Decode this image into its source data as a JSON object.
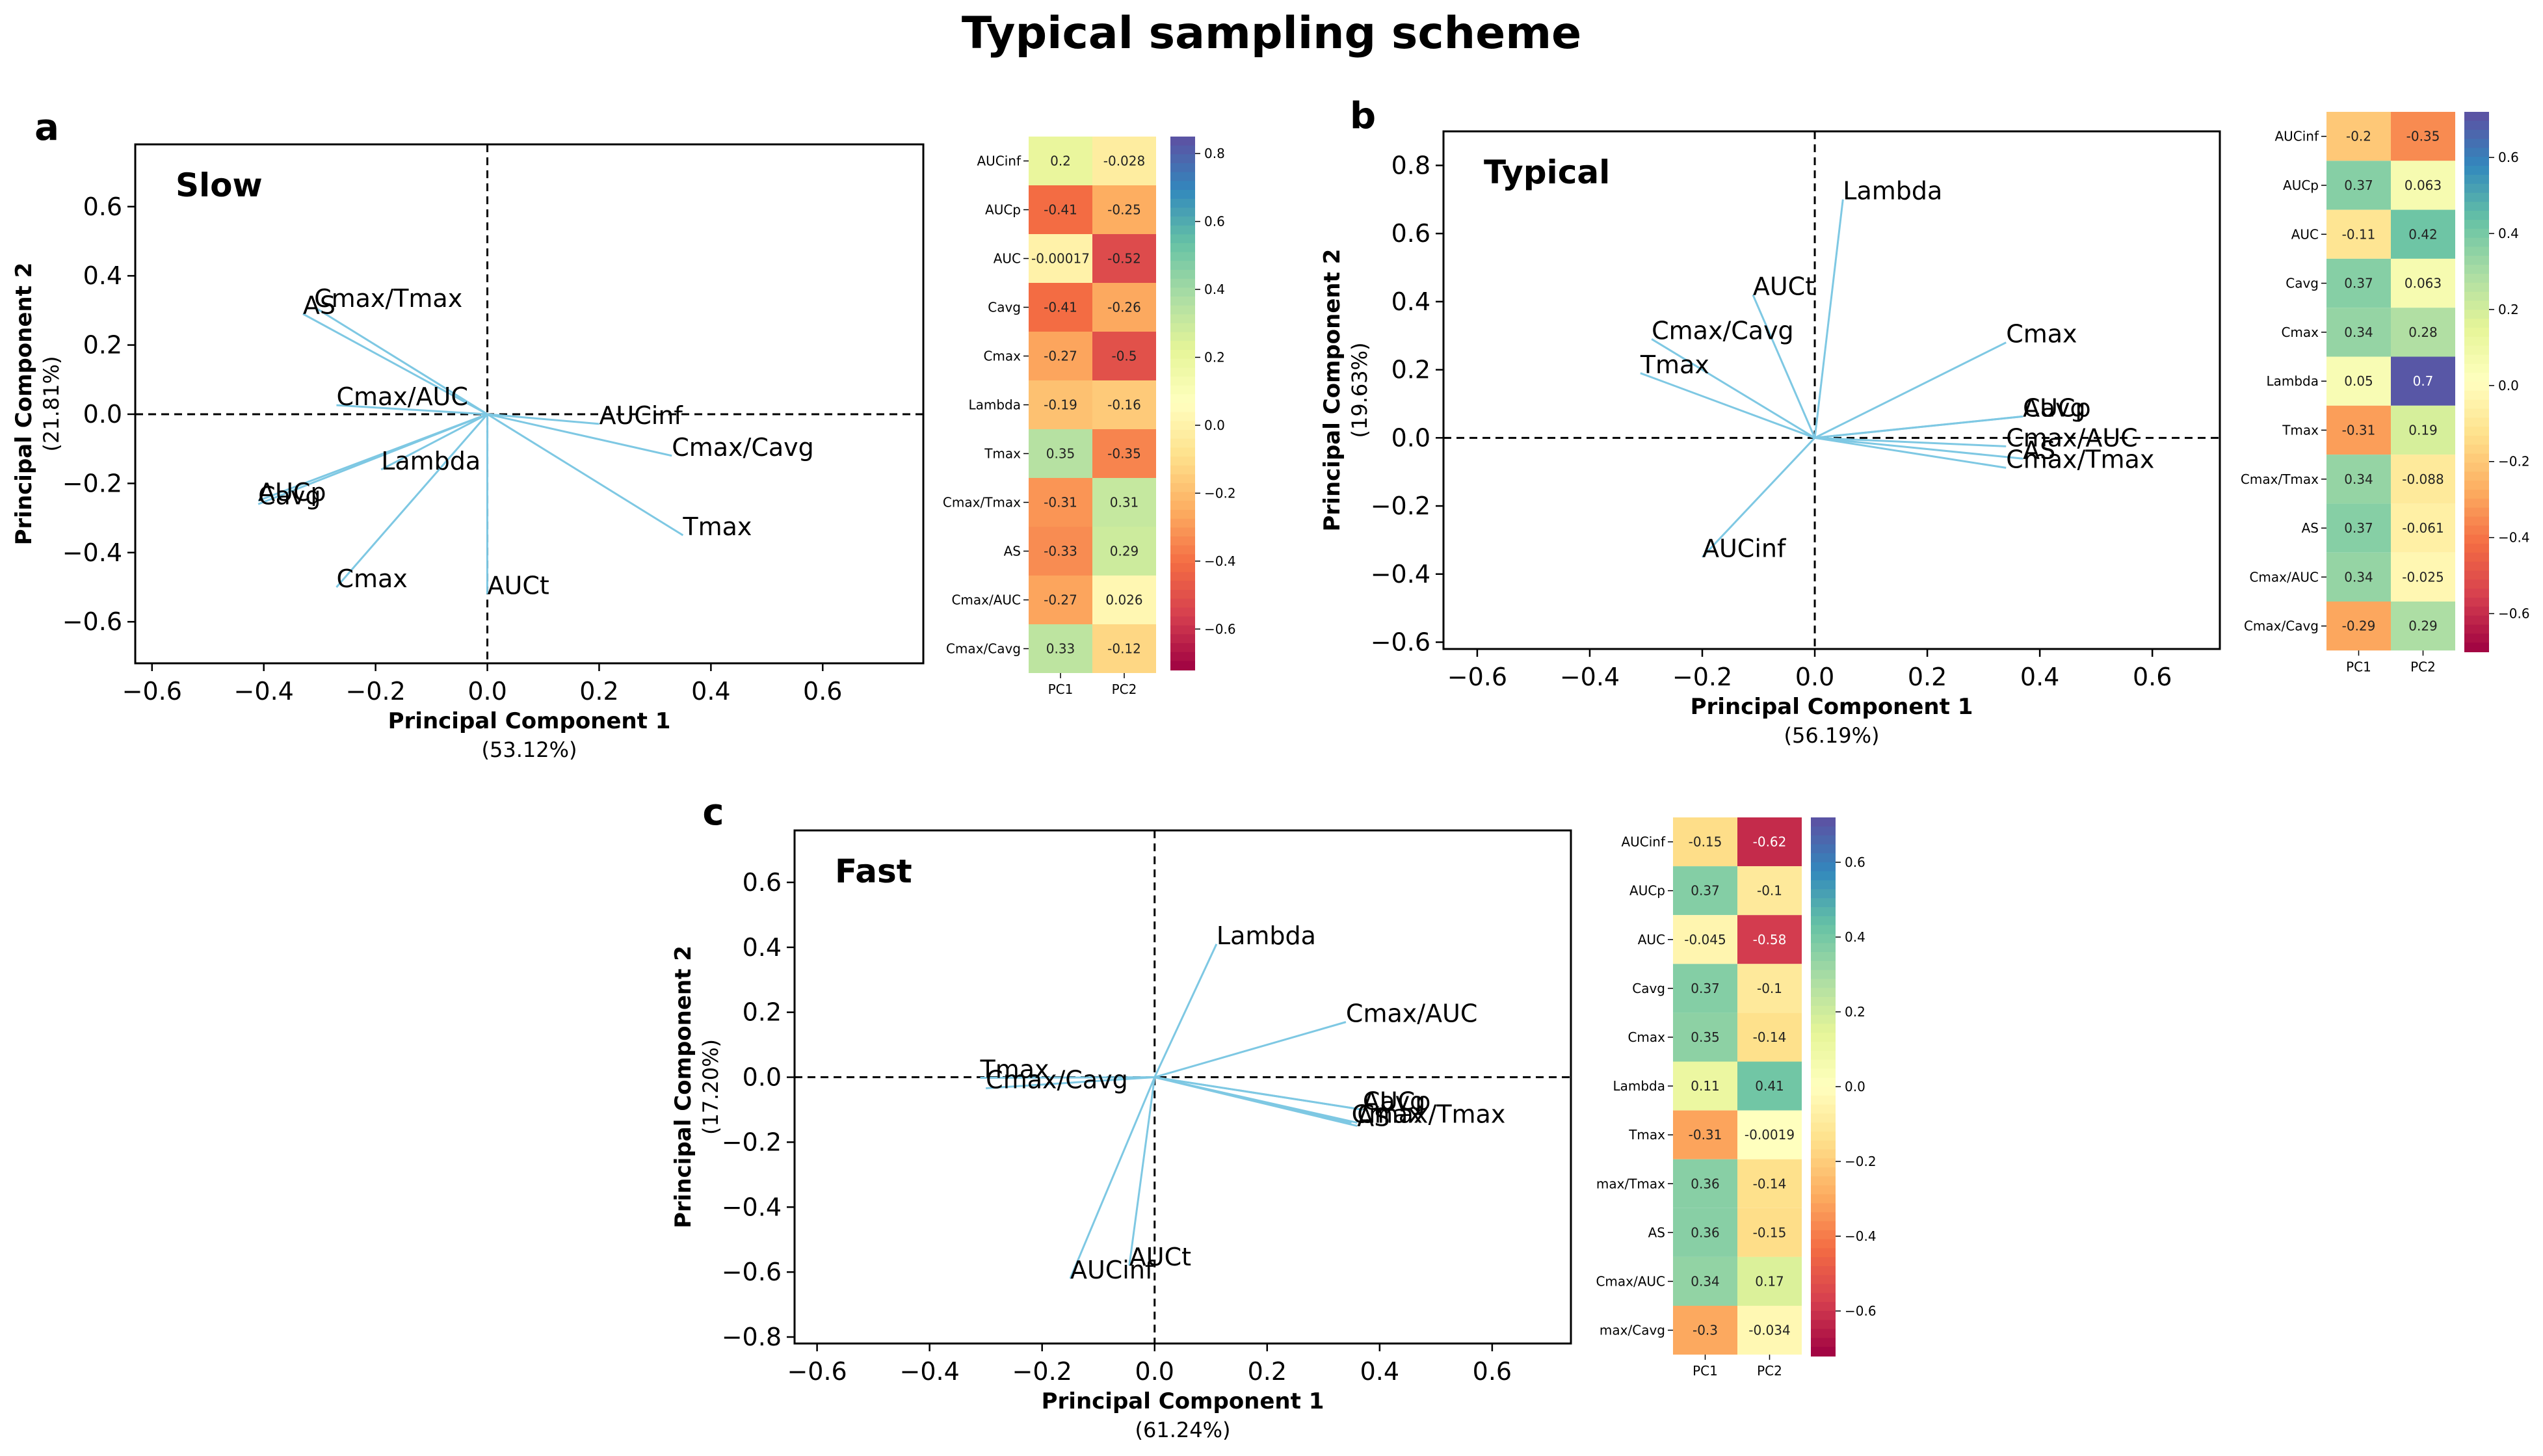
{
  "figure_title": "Typical sampling scheme",
  "colormap": [
    "#9e0142",
    "#d53e4f",
    "#f46d43",
    "#fdae61",
    "#fee08b",
    "#ffffbf",
    "#e6f598",
    "#abdda4",
    "#66c2a5",
    "#3288bd",
    "#5e4fa2"
  ],
  "vector_color": "#7ec8e3",
  "chart_data": [
    {
      "type": "scatter",
      "letter": "a",
      "name": "Slow",
      "xlabel": "Principal Component 1",
      "xlabel_sub": "(53.12%)",
      "ylabel": "Principal Component 2",
      "ylabel_sub": "(21.81%)",
      "xlim": [
        -0.63,
        0.78
      ],
      "ylim": [
        -0.72,
        0.78
      ],
      "xticks": [
        -0.6,
        -0.4,
        -0.2,
        0.0,
        0.2,
        0.4,
        0.6
      ],
      "yticks": [
        -0.6,
        -0.4,
        -0.2,
        0.0,
        0.2,
        0.4,
        0.6
      ],
      "xtick_labels": [
        "−0.6",
        "−0.4",
        "−0.2",
        "0.0",
        "0.2",
        "0.4",
        "0.6"
      ],
      "ytick_labels": [
        "−0.6",
        "−0.4",
        "−0.2",
        "0.0",
        "0.2",
        "0.4",
        "0.6"
      ],
      "vectors": [
        {
          "name": "AUCinf",
          "x": 0.2,
          "y": -0.028
        },
        {
          "name": "AUCp",
          "x": -0.41,
          "y": -0.25
        },
        {
          "name": "AUC",
          "x": -0.00017,
          "y": -0.52
        },
        {
          "name": "Cavg",
          "x": -0.41,
          "y": -0.26
        },
        {
          "name": "Cmax",
          "x": -0.27,
          "y": -0.5
        },
        {
          "name": "Lambda",
          "x": -0.19,
          "y": -0.16
        },
        {
          "name": "Tmax",
          "x": 0.35,
          "y": -0.35
        },
        {
          "name": "Cmax/Tmax",
          "x": -0.31,
          "y": 0.31
        },
        {
          "name": "AS",
          "x": -0.33,
          "y": 0.29
        },
        {
          "name": "Cmax/AUC",
          "x": -0.27,
          "y": 0.026
        },
        {
          "name": "Cmax/Cavg",
          "x": 0.33,
          "y": -0.12
        }
      ],
      "vector_labels": [
        {
          "text": "AUCinf",
          "x": 0.2,
          "y": -0.028
        },
        {
          "text": "AUCp",
          "x": -0.41,
          "y": -0.25
        },
        {
          "text": "Cavg",
          "x": -0.41,
          "y": -0.26
        },
        {
          "text": "Cmax",
          "x": -0.27,
          "y": -0.5
        },
        {
          "text": "Lambda",
          "x": -0.19,
          "y": -0.16
        },
        {
          "text": "Tmax",
          "x": 0.35,
          "y": -0.35
        },
        {
          "text": "Cmax/Tmax",
          "x": -0.31,
          "y": 0.31
        },
        {
          "text": "AS",
          "x": -0.33,
          "y": 0.29
        },
        {
          "text": "Cmax/AUC",
          "x": -0.27,
          "y": 0.026
        },
        {
          "text": "Cmax/Cavg",
          "x": 0.33,
          "y": -0.12
        },
        {
          "text": "AUCt",
          "x": 0.0,
          "y": -0.52
        }
      ],
      "heatmap": {
        "rows": [
          "AUCinf",
          "AUCp",
          "AUC",
          "Cavg",
          "Cmax",
          "Lambda",
          "Tmax",
          "Cmax/Tmax",
          "AS",
          "Cmax/AUC",
          "Cmax/Cavg"
        ],
        "columns": [
          "PC1",
          "PC2"
        ],
        "values": [
          [
            0.2,
            -0.028
          ],
          [
            -0.41,
            -0.25
          ],
          [
            -0.00017,
            -0.52
          ],
          [
            -0.41,
            -0.26
          ],
          [
            -0.27,
            -0.5
          ],
          [
            -0.19,
            -0.16
          ],
          [
            0.35,
            -0.35
          ],
          [
            -0.31,
            0.31
          ],
          [
            -0.33,
            0.29
          ],
          [
            -0.27,
            0.026
          ],
          [
            0.33,
            -0.12
          ]
        ],
        "labels": [
          [
            "0.2",
            "-0.028"
          ],
          [
            "-0.41",
            "-0.25"
          ],
          [
            "-0.00017",
            "-0.52"
          ],
          [
            "-0.41",
            "-0.26"
          ],
          [
            "-0.27",
            "-0.5"
          ],
          [
            "-0.19",
            "-0.16"
          ],
          [
            "0.35",
            "-0.35"
          ],
          [
            "-0.31",
            "0.31"
          ],
          [
            "-0.33",
            "0.29"
          ],
          [
            "-0.27",
            "0.026"
          ],
          [
            "0.33",
            "-0.12"
          ]
        ],
        "vmin": -0.72,
        "vmax": 0.85,
        "cbar_ticks": [
          0.8,
          0.6,
          0.4,
          0.2,
          0.0,
          -0.2,
          -0.4,
          -0.6
        ],
        "cbar_tick_labels": [
          "0.8",
          "0.6",
          "0.4",
          "0.2",
          "0.0",
          "−0.2",
          "−0.4",
          "−0.6"
        ]
      }
    },
    {
      "type": "scatter",
      "letter": "b",
      "name": "Typical",
      "xlabel": "Principal Component 1",
      "xlabel_sub": "(56.19%)",
      "ylabel": "Principal Component 2",
      "ylabel_sub": "(19.63%)",
      "xlim": [
        -0.66,
        0.72
      ],
      "ylim": [
        -0.62,
        0.9
      ],
      "xticks": [
        -0.6,
        -0.4,
        -0.2,
        0.0,
        0.2,
        0.4,
        0.6
      ],
      "yticks": [
        -0.6,
        -0.4,
        -0.2,
        0.0,
        0.2,
        0.4,
        0.6,
        0.8
      ],
      "xtick_labels": [
        "−0.6",
        "−0.4",
        "−0.2",
        "0.0",
        "0.2",
        "0.4",
        "0.6"
      ],
      "ytick_labels": [
        "−0.6",
        "−0.4",
        "−0.2",
        "0.0",
        "0.2",
        "0.4",
        "0.6",
        "0.8"
      ],
      "vectors": [
        {
          "name": "AUCinf",
          "x": -0.2,
          "y": -0.35
        },
        {
          "name": "AUCp",
          "x": 0.37,
          "y": 0.063
        },
        {
          "name": "AUC",
          "x": -0.11,
          "y": 0.42
        },
        {
          "name": "Cavg",
          "x": 0.37,
          "y": 0.063
        },
        {
          "name": "Cmax",
          "x": 0.34,
          "y": 0.28
        },
        {
          "name": "Lambda",
          "x": 0.05,
          "y": 0.7
        },
        {
          "name": "Tmax",
          "x": -0.31,
          "y": 0.19
        },
        {
          "name": "Cmax/Tmax",
          "x": 0.34,
          "y": -0.088
        },
        {
          "name": "AS",
          "x": 0.37,
          "y": -0.061
        },
        {
          "name": "Cmax/AUC",
          "x": 0.34,
          "y": -0.025
        },
        {
          "name": "Cmax/Cavg",
          "x": -0.29,
          "y": 0.29
        }
      ],
      "vector_labels": [
        {
          "text": "AUCinf",
          "x": -0.2,
          "y": -0.35
        },
        {
          "text": "AUCp",
          "x": 0.37,
          "y": 0.063
        },
        {
          "text": "Cavg",
          "x": 0.37,
          "y": 0.063
        },
        {
          "text": "Cmax",
          "x": 0.34,
          "y": 0.28
        },
        {
          "text": "Lambda",
          "x": 0.05,
          "y": 0.7
        },
        {
          "text": "Tmax",
          "x": -0.31,
          "y": 0.19
        },
        {
          "text": "Cmax/Tmax",
          "x": 0.34,
          "y": -0.088
        },
        {
          "text": "AS",
          "x": 0.37,
          "y": -0.061
        },
        {
          "text": "Cmax/AUC",
          "x": 0.34,
          "y": -0.025
        },
        {
          "text": "Cmax/Cavg",
          "x": -0.29,
          "y": 0.29
        },
        {
          "text": "AUCt",
          "x": -0.11,
          "y": 0.42
        }
      ],
      "heatmap": {
        "rows": [
          "AUCinf",
          "AUCp",
          "AUC",
          "Cavg",
          "Cmax",
          "Lambda",
          "Tmax",
          "Cmax/Tmax",
          "AS",
          "Cmax/AUC",
          "Cmax/Cavg"
        ],
        "columns": [
          "PC1",
          "PC2"
        ],
        "values": [
          [
            -0.2,
            -0.35
          ],
          [
            0.37,
            0.063
          ],
          [
            -0.11,
            0.42
          ],
          [
            0.37,
            0.063
          ],
          [
            0.34,
            0.28
          ],
          [
            0.05,
            0.7
          ],
          [
            -0.31,
            0.19
          ],
          [
            0.34,
            -0.088
          ],
          [
            0.37,
            -0.061
          ],
          [
            0.34,
            -0.025
          ],
          [
            -0.29,
            0.29
          ]
        ],
        "labels": [
          [
            "-0.2",
            "-0.35"
          ],
          [
            "0.37",
            "0.063"
          ],
          [
            "-0.11",
            "0.42"
          ],
          [
            "0.37",
            "0.063"
          ],
          [
            "0.34",
            "0.28"
          ],
          [
            "0.05",
            "0.7"
          ],
          [
            "-0.31",
            "0.19"
          ],
          [
            "0.34",
            "-0.088"
          ],
          [
            "0.37",
            "-0.061"
          ],
          [
            "0.34",
            "-0.025"
          ],
          [
            "-0.29",
            "0.29"
          ]
        ],
        "vmin": -0.7,
        "vmax": 0.72,
        "cbar_ticks": [
          0.6,
          0.4,
          0.2,
          0.0,
          -0.2,
          -0.4,
          -0.6
        ],
        "cbar_tick_labels": [
          "0.6",
          "0.4",
          "0.2",
          "0.0",
          "−0.2",
          "−0.4",
          "−0.6"
        ]
      }
    },
    {
      "type": "scatter",
      "letter": "c",
      "name": "Fast",
      "xlabel": "Principal Component 1",
      "xlabel_sub": "(61.24%)",
      "ylabel": "Principal Component 2",
      "ylabel_sub": "(17.20%)",
      "xlim": [
        -0.64,
        0.74
      ],
      "ylim": [
        -0.82,
        0.76
      ],
      "xticks": [
        -0.6,
        -0.4,
        -0.2,
        0.0,
        0.2,
        0.4,
        0.6
      ],
      "yticks": [
        -0.8,
        -0.6,
        -0.4,
        -0.2,
        0.0,
        0.2,
        0.4,
        0.6
      ],
      "xtick_labels": [
        "−0.6",
        "−0.4",
        "−0.2",
        "0.0",
        "0.2",
        "0.4",
        "0.6"
      ],
      "ytick_labels": [
        "−0.8",
        "−0.6",
        "−0.4",
        "−0.2",
        "0.0",
        "0.2",
        "0.4",
        "0.6"
      ],
      "vectors": [
        {
          "name": "AUCinf",
          "x": -0.15,
          "y": -0.62
        },
        {
          "name": "AUCp",
          "x": 0.37,
          "y": -0.1
        },
        {
          "name": "AUC",
          "x": -0.045,
          "y": -0.58
        },
        {
          "name": "Cavg",
          "x": 0.37,
          "y": -0.1
        },
        {
          "name": "Cmax",
          "x": 0.35,
          "y": -0.14
        },
        {
          "name": "Lambda",
          "x": 0.11,
          "y": 0.41
        },
        {
          "name": "Tmax",
          "x": -0.31,
          "y": -0.0019
        },
        {
          "name": "Cmax/Tmax",
          "x": 0.36,
          "y": -0.14
        },
        {
          "name": "AS",
          "x": 0.36,
          "y": -0.15
        },
        {
          "name": "Cmax/AUC",
          "x": 0.34,
          "y": 0.17
        },
        {
          "name": "Cmax/Cavg",
          "x": -0.3,
          "y": -0.034
        }
      ],
      "vector_labels": [
        {
          "text": "AUCinf",
          "x": -0.15,
          "y": -0.62
        },
        {
          "text": "AUCp",
          "x": 0.37,
          "y": -0.1
        },
        {
          "text": "Cavg",
          "x": 0.37,
          "y": -0.1
        },
        {
          "text": "Cmax",
          "x": 0.35,
          "y": -0.14
        },
        {
          "text": "Lambda",
          "x": 0.11,
          "y": 0.41
        },
        {
          "text": "Tmax",
          "x": -0.31,
          "y": -0.0019
        },
        {
          "text": "Cmax/Tmax",
          "x": 0.36,
          "y": -0.14
        },
        {
          "text": "AS",
          "x": 0.36,
          "y": -0.15
        },
        {
          "text": "Cmax/AUC",
          "x": 0.34,
          "y": 0.17
        },
        {
          "text": "Cmax/Cavg",
          "x": -0.3,
          "y": -0.034
        },
        {
          "text": "AUCt",
          "x": -0.045,
          "y": -0.58
        }
      ],
      "heatmap": {
        "rows": [
          "AUCinf",
          "AUCp",
          "AUC",
          "Cavg",
          "Cmax",
          "Lambda",
          "Tmax",
          "max/Tmax",
          "AS",
          "Cmax/AUC",
          "max/Cavg"
        ],
        "columns": [
          "PC1",
          "PC2"
        ],
        "values": [
          [
            -0.15,
            -0.62
          ],
          [
            0.37,
            -0.1
          ],
          [
            -0.045,
            -0.58
          ],
          [
            0.37,
            -0.1
          ],
          [
            0.35,
            -0.14
          ],
          [
            0.11,
            0.41
          ],
          [
            -0.31,
            -0.0019
          ],
          [
            0.36,
            -0.14
          ],
          [
            0.36,
            -0.15
          ],
          [
            0.34,
            0.17
          ],
          [
            -0.3,
            -0.034
          ]
        ],
        "labels": [
          [
            "-0.15",
            "-0.62"
          ],
          [
            "0.37",
            "-0.1"
          ],
          [
            "-0.045",
            "-0.58"
          ],
          [
            "0.37",
            "-0.1"
          ],
          [
            "0.35",
            "-0.14"
          ],
          [
            "0.11",
            "0.41"
          ],
          [
            "-0.31",
            "-0.0019"
          ],
          [
            "0.36",
            "-0.14"
          ],
          [
            "0.36",
            "-0.15"
          ],
          [
            "0.34",
            "0.17"
          ],
          [
            "-0.3",
            "-0.034"
          ]
        ],
        "vmin": -0.72,
        "vmax": 0.72,
        "cbar_ticks": [
          0.6,
          0.4,
          0.2,
          0.0,
          -0.2,
          -0.4,
          -0.6
        ],
        "cbar_tick_labels": [
          "0.6",
          "0.4",
          "0.2",
          "0.0",
          "−0.2",
          "−0.4",
          "−0.6"
        ]
      }
    }
  ]
}
